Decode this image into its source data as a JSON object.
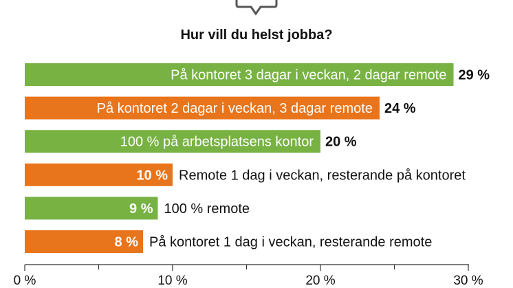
{
  "chart_data": {
    "type": "bar",
    "orientation": "horizontal",
    "title": "Hur vill du helst jobba?",
    "categories": [
      "På kontoret 3 dagar i veckan, 2 dagar remote",
      "På kontoret 2 dagar i veckan, 3 dagar remote",
      "100 % på arbetsplatsens kontor",
      "Remote 1 dag i veckan, resterande på kontoret",
      "100 % remote",
      "På kontoret 1 dag i veckan, resterande remote"
    ],
    "values": [
      29,
      24,
      20,
      10,
      9,
      8
    ],
    "value_labels": [
      "29 %",
      "24 %",
      "20 %",
      "10 %",
      "9 %",
      "8 %"
    ],
    "bar_colors": [
      "#77b243",
      "#e8741b",
      "#77b243",
      "#e8741b",
      "#77b243",
      "#e8741b"
    ],
    "xlim": [
      0,
      30
    ],
    "xticks": [
      0,
      10,
      20,
      30
    ],
    "xtick_labels": [
      "0 %",
      "10 %",
      "20 %",
      "30 %"
    ],
    "grid": false
  },
  "colors": {
    "green": "#77b243",
    "orange": "#e8741b",
    "axis": "#333333",
    "icon": "#555555"
  },
  "icons": {
    "top": "speech-bubble-icon"
  }
}
